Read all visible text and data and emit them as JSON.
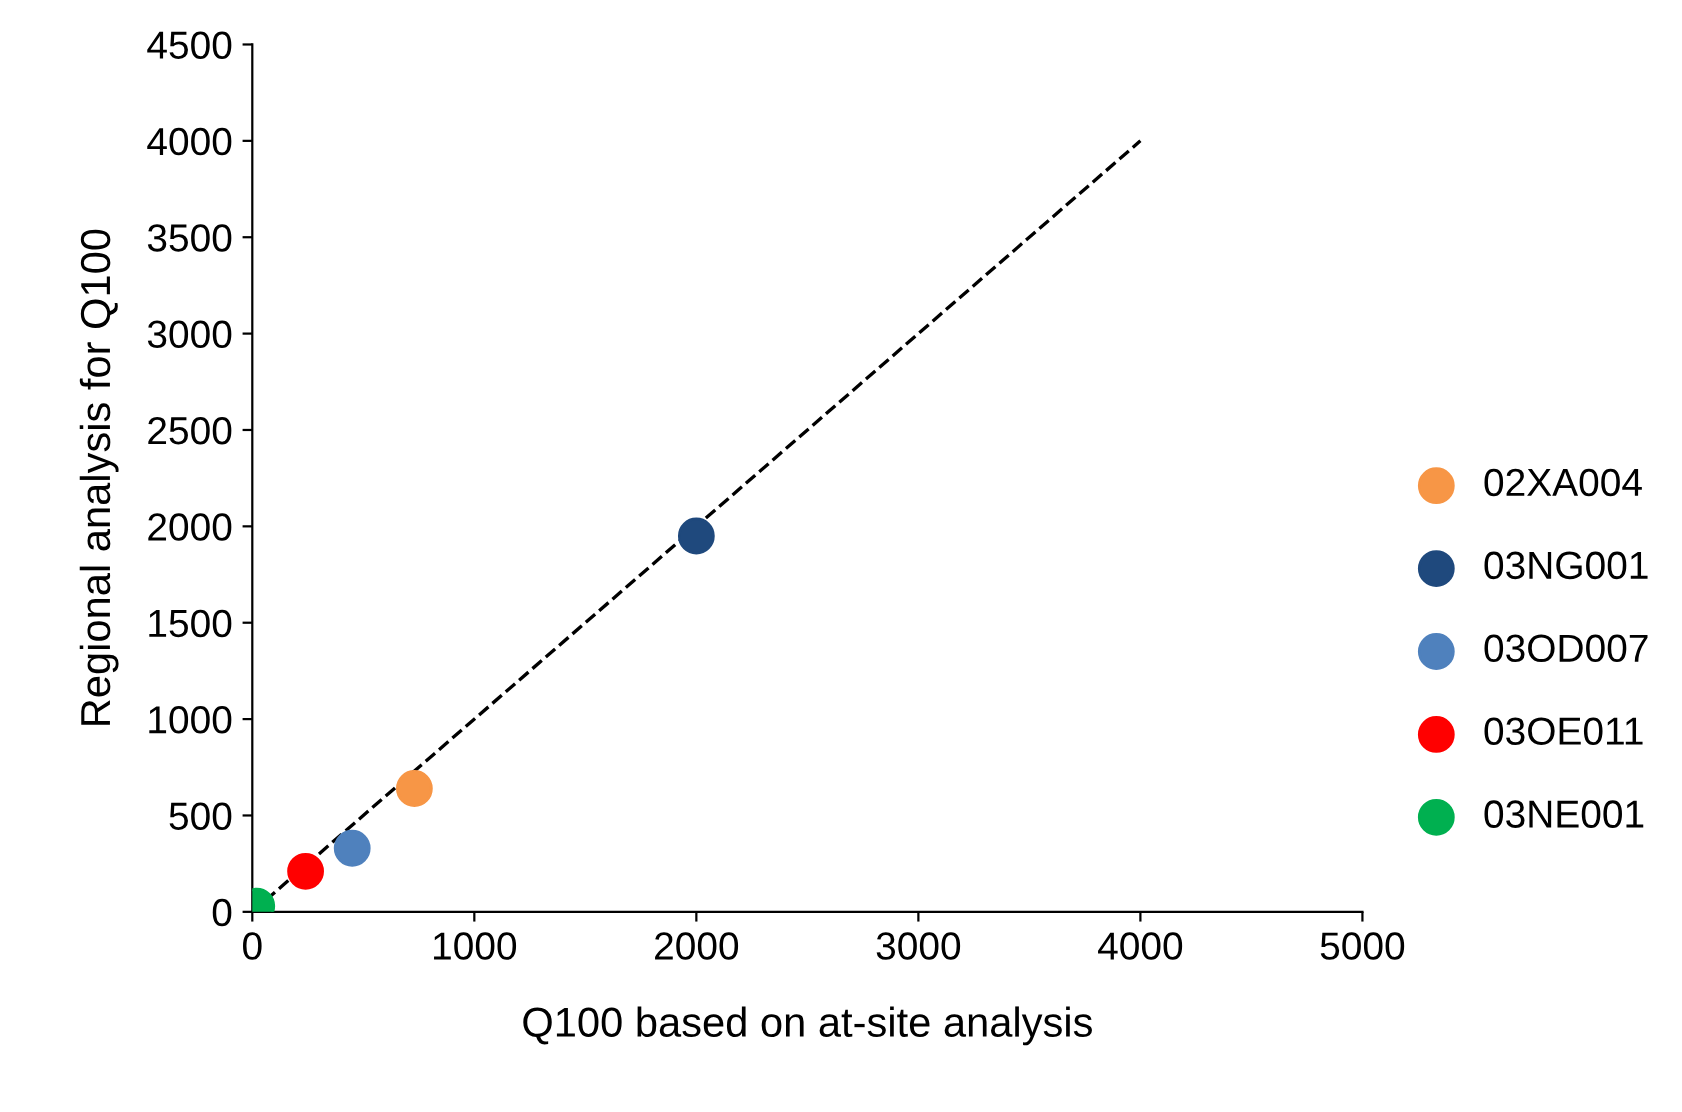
{
  "chart_data": {
    "type": "scatter",
    "xlabel": "Q100 based on at-site analysis",
    "ylabel": "Regional analysis for Q100",
    "xlim": [
      0,
      5000
    ],
    "xticks": [
      0,
      1000,
      2000,
      3000,
      4000,
      5000
    ],
    "ylim": [
      0,
      4500
    ],
    "yticks": [
      0,
      500,
      1000,
      1500,
      2000,
      2500,
      3000,
      3500,
      4000,
      4500
    ],
    "grid": false,
    "legend": "right",
    "marker": "circle",
    "series": [
      {
        "name": "02XA004",
        "color": "#f79646",
        "x": [
          730
        ],
        "values": [
          640
        ]
      },
      {
        "name": "03NG001",
        "color": "#1f497d",
        "x": [
          2000
        ],
        "values": [
          1950
        ]
      },
      {
        "name": "03OD007",
        "color": "#4f81bd",
        "x": [
          450
        ],
        "values": [
          330
        ]
      },
      {
        "name": "03OE011",
        "color": "#ff0000",
        "x": [
          240
        ],
        "values": [
          210
        ]
      },
      {
        "name": "03NE001",
        "color": "#00b050",
        "x": [
          20
        ],
        "values": [
          30
        ]
      },
      {
        "type": "line",
        "color": "#000000",
        "line_style": "dashed",
        "marker": "none",
        "x": [
          0,
          4000
        ],
        "values": [
          0,
          4000
        ]
      }
    ]
  }
}
